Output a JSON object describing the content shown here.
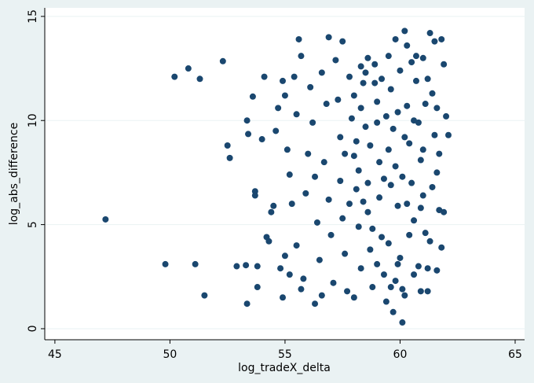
{
  "chart_data": {
    "type": "scatter",
    "x_label": "log_tradeX_delta",
    "y_label": "log_abs_difference",
    "color": "#1a476f",
    "xlim": [
      44.56,
      65.41
    ],
    "ylim": [
      -0.53,
      15.41
    ],
    "xticks": [
      45,
      50,
      55,
      60,
      65
    ],
    "yticks": [
      0,
      5,
      10,
      15
    ],
    "grid": true,
    "x": [
      47.2,
      49.8,
      50.2,
      50.8,
      51.1,
      51.3,
      51.5,
      52.3,
      52.5,
      52.6,
      52.9,
      53.3,
      53.35,
      53.4,
      53.35,
      53.6,
      53.7,
      53.7,
      53.8,
      53.8,
      54.0,
      54.1,
      54.2,
      54.3,
      54.5,
      54.4,
      54.6,
      54.7,
      54.9,
      55.0,
      55.1,
      55.2,
      55.3,
      55.4,
      55.5,
      55.6,
      55.7,
      55.5,
      55.0,
      54.8,
      55.2,
      55.7,
      54.9,
      55.8,
      55.9,
      56.0,
      56.1,
      56.2,
      56.3,
      56.4,
      56.5,
      56.3,
      56.6,
      56.8,
      56.9,
      56.7,
      56.9,
      57.0,
      57.1,
      56.6,
      57.2,
      57.3,
      57.4,
      57.4,
      57.5,
      57.6,
      57.7,
      57.5,
      57.8,
      57.9,
      58.0,
      58.1,
      58.2,
      58.3,
      58.0,
      58.4,
      58.5,
      58.2,
      58.6,
      58.7,
      58.8,
      58.9,
      59.0,
      58.7,
      59.1,
      59.2,
      59.3,
      59.4,
      59.5,
      59.6,
      59.7,
      59.8,
      59.9,
      59.5,
      59.7,
      59.8,
      60.0,
      60.1,
      60.2,
      60.3,
      60.4,
      60.5,
      60.6,
      60.0,
      60.1,
      60.3,
      60.7,
      60.8,
      60.9,
      61.0,
      61.1,
      61.2,
      61.3,
      61.0,
      60.9,
      61.4,
      61.5,
      61.6,
      61.7,
      61.8,
      61.9,
      62.0,
      62.1,
      61.9,
      61.6,
      61.5,
      61.2,
      60.6,
      60.2,
      59.9,
      59.3,
      59.0,
      58.6,
      58.3,
      58.9,
      59.6,
      60.4,
      61.1,
      61.4,
      60.8,
      58.4,
      58.8,
      59.2,
      59.5,
      59.9,
      60.3,
      60.7,
      61.0,
      61.3,
      61.7,
      58.1,
      58.5,
      59.1,
      59.6,
      60.1,
      60.5,
      60.9,
      61.2,
      61.6,
      61.8,
      57.6,
      57.8,
      58.0,
      58.3,
      58.6,
      59.0,
      59.4,
      59.8,
      60.2,
      60.6
    ],
    "values": [
      5.25,
      3.1,
      12.1,
      12.5,
      3.1,
      12.0,
      1.6,
      12.85,
      8.8,
      8.2,
      3.0,
      3.05,
      10.0,
      9.35,
      1.2,
      11.15,
      6.6,
      6.4,
      2.0,
      3.0,
      9.1,
      12.1,
      4.4,
      4.2,
      5.9,
      5.6,
      9.5,
      10.6,
      11.9,
      11.2,
      8.6,
      7.4,
      6.0,
      12.1,
      10.3,
      13.9,
      13.1,
      4.0,
      3.5,
      2.9,
      2.6,
      1.9,
      1.5,
      2.4,
      6.5,
      8.4,
      11.6,
      9.9,
      7.3,
      5.1,
      3.3,
      1.2,
      12.3,
      10.8,
      14.0,
      8.0,
      6.2,
      4.5,
      2.2,
      1.6,
      12.9,
      11.0,
      9.2,
      7.1,
      5.3,
      3.6,
      1.8,
      13.8,
      12.1,
      10.1,
      8.3,
      6.7,
      4.9,
      2.9,
      1.5,
      11.8,
      9.7,
      7.6,
      5.6,
      3.8,
      2.0,
      12.7,
      10.9,
      8.8,
      6.3,
      4.4,
      2.6,
      1.3,
      13.1,
      11.5,
      9.6,
      7.8,
      5.9,
      4.1,
      0.8,
      2.3,
      12.4,
      0.3,
      14.3,
      10.7,
      8.9,
      7.0,
      5.2,
      3.4,
      1.9,
      13.6,
      11.9,
      9.9,
      8.1,
      6.4,
      4.6,
      2.9,
      14.2,
      13.0,
      1.8,
      11.3,
      9.3,
      7.5,
      5.7,
      3.9,
      12.7,
      10.2,
      9.3,
      5.6,
      2.8,
      13.8,
      12.0,
      2.6,
      1.6,
      3.1,
      7.2,
      9.9,
      13.0,
      10.6,
      11.8,
      6.9,
      4.5,
      10.8,
      6.8,
      3.0,
      6.1,
      4.8,
      12.0,
      8.6,
      10.4,
      6.0,
      13.1,
      8.6,
      4.2,
      8.4,
      9.0,
      12.3,
      8.0,
      2.0,
      7.3,
      12.8,
      5.8,
      1.8,
      10.6,
      13.9,
      8.4,
      6.0,
      11.2,
      12.6,
      7.0,
      3.1,
      10.2,
      13.9,
      9.2,
      10.0
    ]
  }
}
